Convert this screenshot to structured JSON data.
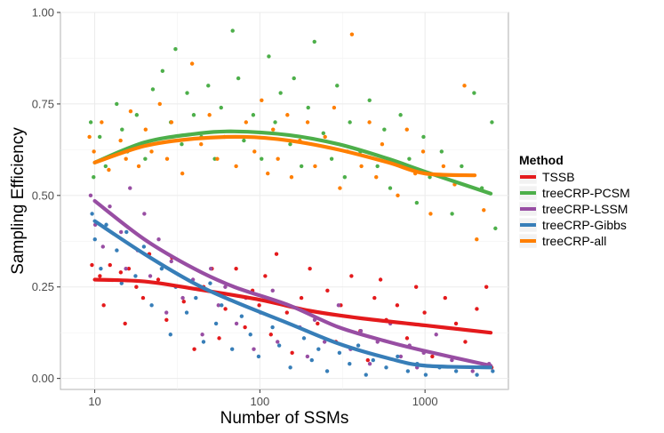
{
  "chart_data": {
    "type": "scatter",
    "title": "",
    "xlabel": "Number of SSMs",
    "ylabel": "Sampling Efficiency",
    "xscale": "log10",
    "xlim": [
      6.2,
      3200
    ],
    "ylim": [
      -0.03,
      1.0
    ],
    "x_ticks": [
      10,
      100,
      1000
    ],
    "x_tick_labels": [
      "10",
      "100",
      "1000"
    ],
    "y_ticks": [
      0.0,
      0.25,
      0.5,
      0.75,
      1.0
    ],
    "y_tick_labels": [
      "0.00",
      "0.25",
      "0.50",
      "0.75",
      "1.00"
    ],
    "grid": true,
    "legend": {
      "title": "Method",
      "position": "right"
    },
    "series": [
      {
        "name": "TSSB",
        "color": "#E41A1C",
        "trend": [
          [
            10,
            0.27
          ],
          [
            20,
            0.265
          ],
          [
            40,
            0.245
          ],
          [
            100,
            0.215
          ],
          [
            200,
            0.185
          ],
          [
            400,
            0.165
          ],
          [
            1000,
            0.145
          ],
          [
            2500,
            0.125
          ]
        ],
        "points": [
          [
            9.5,
            0.31
          ],
          [
            10.5,
            0.28
          ],
          [
            11,
            0.2
          ],
          [
            12,
            0.31
          ],
          [
            14,
            0.29
          ],
          [
            15,
            0.15
          ],
          [
            16,
            0.3
          ],
          [
            18,
            0.25
          ],
          [
            20,
            0.22
          ],
          [
            22,
            0.34
          ],
          [
            25,
            0.27
          ],
          [
            28,
            0.16
          ],
          [
            30,
            0.33
          ],
          [
            35,
            0.21
          ],
          [
            40,
            0.08
          ],
          [
            45,
            0.25
          ],
          [
            50,
            0.3
          ],
          [
            55,
            0.11
          ],
          [
            60,
            0.19
          ],
          [
            70,
            0.3
          ],
          [
            80,
            0.14
          ],
          [
            90,
            0.24
          ],
          [
            100,
            0.2
          ],
          [
            110,
            0.28
          ],
          [
            120,
            0.12
          ],
          [
            130,
            0.34
          ],
          [
            150,
            0.18
          ],
          [
            160,
            0.07
          ],
          [
            180,
            0.22
          ],
          [
            200,
            0.3
          ],
          [
            220,
            0.15
          ],
          [
            250,
            0.24
          ],
          [
            280,
            0.1
          ],
          [
            300,
            0.2
          ],
          [
            350,
            0.28
          ],
          [
            400,
            0.13
          ],
          [
            450,
            0.05
          ],
          [
            500,
            0.22
          ],
          [
            550,
            0.27
          ],
          [
            600,
            0.16
          ],
          [
            700,
            0.2
          ],
          [
            800,
            0.11
          ],
          [
            900,
            0.25
          ],
          [
            1000,
            0.18
          ],
          [
            1100,
            0.06
          ],
          [
            1300,
            0.22
          ],
          [
            1500,
            0.15
          ],
          [
            1700,
            0.1
          ],
          [
            2000,
            0.19
          ],
          [
            2300,
            0.25
          ],
          [
            2500,
            0.03
          ]
        ]
      },
      {
        "name": "treeCRP-PCSM",
        "color": "#4DAF4A",
        "trend": [
          [
            10,
            0.59
          ],
          [
            20,
            0.645
          ],
          [
            40,
            0.668
          ],
          [
            70,
            0.675
          ],
          [
            150,
            0.665
          ],
          [
            300,
            0.64
          ],
          [
            600,
            0.6
          ],
          [
            1000,
            0.565
          ],
          [
            2500,
            0.505
          ]
        ],
        "points": [
          [
            9.5,
            0.7
          ],
          [
            10,
            0.55
          ],
          [
            11,
            0.66
          ],
          [
            12,
            0.58
          ],
          [
            14,
            0.75
          ],
          [
            15,
            0.68
          ],
          [
            16,
            0.62
          ],
          [
            18,
            0.72
          ],
          [
            20,
            0.6
          ],
          [
            22,
            0.79
          ],
          [
            25,
            0.84
          ],
          [
            28,
            0.7
          ],
          [
            30,
            0.9
          ],
          [
            33,
            0.64
          ],
          [
            36,
            0.78
          ],
          [
            40,
            0.72
          ],
          [
            45,
            0.66
          ],
          [
            50,
            0.8
          ],
          [
            55,
            0.6
          ],
          [
            60,
            0.74
          ],
          [
            70,
            0.95
          ],
          [
            75,
            0.82
          ],
          [
            80,
            0.65
          ],
          [
            90,
            0.72
          ],
          [
            100,
            0.6
          ],
          [
            110,
            0.88
          ],
          [
            120,
            0.7
          ],
          [
            130,
            0.78
          ],
          [
            150,
            0.64
          ],
          [
            160,
            0.82
          ],
          [
            180,
            0.58
          ],
          [
            200,
            0.74
          ],
          [
            220,
            0.92
          ],
          [
            250,
            0.67
          ],
          [
            280,
            0.6
          ],
          [
            300,
            0.8
          ],
          [
            330,
            0.55
          ],
          [
            350,
            0.7
          ],
          [
            400,
            0.62
          ],
          [
            450,
            0.76
          ],
          [
            500,
            0.58
          ],
          [
            550,
            0.68
          ],
          [
            600,
            0.52
          ],
          [
            700,
            0.72
          ],
          [
            800,
            0.6
          ],
          [
            900,
            0.48
          ],
          [
            1000,
            0.66
          ],
          [
            1100,
            0.55
          ],
          [
            1300,
            0.62
          ],
          [
            1500,
            0.45
          ],
          [
            1700,
            0.58
          ],
          [
            2000,
            0.78
          ],
          [
            2200,
            0.52
          ],
          [
            2500,
            0.7
          ],
          [
            2600,
            0.41
          ]
        ]
      },
      {
        "name": "treeCRP-LSSM",
        "color": "#984EA3",
        "trend": [
          [
            10,
            0.485
          ],
          [
            20,
            0.38
          ],
          [
            40,
            0.3
          ],
          [
            70,
            0.25
          ],
          [
            150,
            0.2
          ],
          [
            300,
            0.14
          ],
          [
            600,
            0.1
          ],
          [
            1000,
            0.075
          ],
          [
            2500,
            0.035
          ]
        ],
        "points": [
          [
            9.5,
            0.5
          ],
          [
            10,
            0.42
          ],
          [
            11,
            0.36
          ],
          [
            12,
            0.47
          ],
          [
            14,
            0.4
          ],
          [
            15,
            0.3
          ],
          [
            16,
            0.52
          ],
          [
            18,
            0.35
          ],
          [
            20,
            0.45
          ],
          [
            22,
            0.28
          ],
          [
            25,
            0.38
          ],
          [
            28,
            0.18
          ],
          [
            30,
            0.32
          ],
          [
            35,
            0.22
          ],
          [
            40,
            0.27
          ],
          [
            45,
            0.12
          ],
          [
            50,
            0.3
          ],
          [
            55,
            0.2
          ],
          [
            60,
            0.25
          ],
          [
            70,
            0.15
          ],
          [
            80,
            0.22
          ],
          [
            90,
            0.08
          ],
          [
            100,
            0.18
          ],
          [
            120,
            0.24
          ],
          [
            130,
            0.1
          ],
          [
            150,
            0.2
          ],
          [
            180,
            0.14
          ],
          [
            200,
            0.06
          ],
          [
            220,
            0.16
          ],
          [
            250,
            0.1
          ],
          [
            300,
            0.2
          ],
          [
            350,
            0.08
          ],
          [
            400,
            0.13
          ],
          [
            450,
            0.04
          ],
          [
            500,
            0.1
          ],
          [
            600,
            0.15
          ],
          [
            700,
            0.06
          ],
          [
            800,
            0.09
          ],
          [
            900,
            0.03
          ],
          [
            1000,
            0.07
          ],
          [
            1200,
            0.12
          ],
          [
            1500,
            0.05
          ],
          [
            2000,
            0.02
          ],
          [
            2500,
            0.04
          ]
        ]
      },
      {
        "name": "treeCRP-Gibbs",
        "color": "#377EB8",
        "trend": [
          [
            10,
            0.43
          ],
          [
            20,
            0.34
          ],
          [
            40,
            0.26
          ],
          [
            70,
            0.21
          ],
          [
            150,
            0.15
          ],
          [
            300,
            0.095
          ],
          [
            600,
            0.055
          ],
          [
            1000,
            0.035
          ],
          [
            2500,
            0.03
          ]
        ],
        "points": [
          [
            9.5,
            0.45
          ],
          [
            10,
            0.38
          ],
          [
            11,
            0.3
          ],
          [
            12,
            0.42
          ],
          [
            14,
            0.35
          ],
          [
            15,
            0.26
          ],
          [
            16,
            0.4
          ],
          [
            18,
            0.28
          ],
          [
            20,
            0.36
          ],
          [
            22,
            0.2
          ],
          [
            25,
            0.3
          ],
          [
            28,
            0.12
          ],
          [
            30,
            0.25
          ],
          [
            35,
            0.18
          ],
          [
            40,
            0.22
          ],
          [
            45,
            0.1
          ],
          [
            50,
            0.26
          ],
          [
            55,
            0.15
          ],
          [
            60,
            0.2
          ],
          [
            70,
            0.08
          ],
          [
            80,
            0.17
          ],
          [
            90,
            0.12
          ],
          [
            100,
            0.06
          ],
          [
            120,
            0.14
          ],
          [
            130,
            0.09
          ],
          [
            150,
            0.03
          ],
          [
            180,
            0.11
          ],
          [
            200,
            0.05
          ],
          [
            220,
            0.08
          ],
          [
            250,
            0.02
          ],
          [
            300,
            0.07
          ],
          [
            350,
            0.04
          ],
          [
            400,
            0.09
          ],
          [
            450,
            0.01
          ],
          [
            500,
            0.05
          ],
          [
            600,
            0.03
          ],
          [
            700,
            0.06
          ],
          [
            800,
            0.02
          ],
          [
            900,
            0.04
          ],
          [
            1000,
            0.01
          ],
          [
            1200,
            0.03
          ],
          [
            1500,
            0.02
          ],
          [
            2000,
            0.01
          ],
          [
            2500,
            0.02
          ]
        ]
      },
      {
        "name": "treeCRP-all",
        "color": "#FF7F00",
        "trend": [
          [
            10,
            0.59
          ],
          [
            20,
            0.635
          ],
          [
            40,
            0.655
          ],
          [
            80,
            0.66
          ],
          [
            150,
            0.65
          ],
          [
            300,
            0.625
          ],
          [
            600,
            0.59
          ],
          [
            1000,
            0.56
          ],
          [
            2000,
            0.555
          ]
        ],
        "points": [
          [
            9.5,
            0.66
          ],
          [
            10,
            0.62
          ],
          [
            11,
            0.7
          ],
          [
            12,
            0.57
          ],
          [
            14,
            0.65
          ],
          [
            15,
            0.6
          ],
          [
            16,
            0.73
          ],
          [
            18,
            0.58
          ],
          [
            20,
            0.68
          ],
          [
            22,
            0.62
          ],
          [
            25,
            0.75
          ],
          [
            28,
            0.6
          ],
          [
            30,
            0.7
          ],
          [
            35,
            0.56
          ],
          [
            40,
            0.86
          ],
          [
            45,
            0.64
          ],
          [
            50,
            0.72
          ],
          [
            55,
            0.6
          ],
          [
            60,
            0.66
          ],
          [
            70,
            0.58
          ],
          [
            80,
            0.7
          ],
          [
            90,
            0.62
          ],
          [
            100,
            0.76
          ],
          [
            110,
            0.56
          ],
          [
            120,
            0.68
          ],
          [
            130,
            0.6
          ],
          [
            150,
            0.72
          ],
          [
            160,
            0.55
          ],
          [
            180,
            0.65
          ],
          [
            200,
            0.7
          ],
          [
            220,
            0.58
          ],
          [
            250,
            0.66
          ],
          [
            280,
            0.74
          ],
          [
            300,
            0.52
          ],
          [
            330,
            0.62
          ],
          [
            350,
            0.94
          ],
          [
            400,
            0.58
          ],
          [
            450,
            0.7
          ],
          [
            500,
            0.55
          ],
          [
            550,
            0.64
          ],
          [
            600,
            0.6
          ],
          [
            700,
            0.5
          ],
          [
            800,
            0.68
          ],
          [
            900,
            0.56
          ],
          [
            1000,
            0.62
          ],
          [
            1100,
            0.45
          ],
          [
            1300,
            0.58
          ],
          [
            1500,
            0.53
          ],
          [
            1700,
            0.8
          ],
          [
            2000,
            0.38
          ],
          [
            2200,
            0.46
          ]
        ]
      }
    ]
  }
}
